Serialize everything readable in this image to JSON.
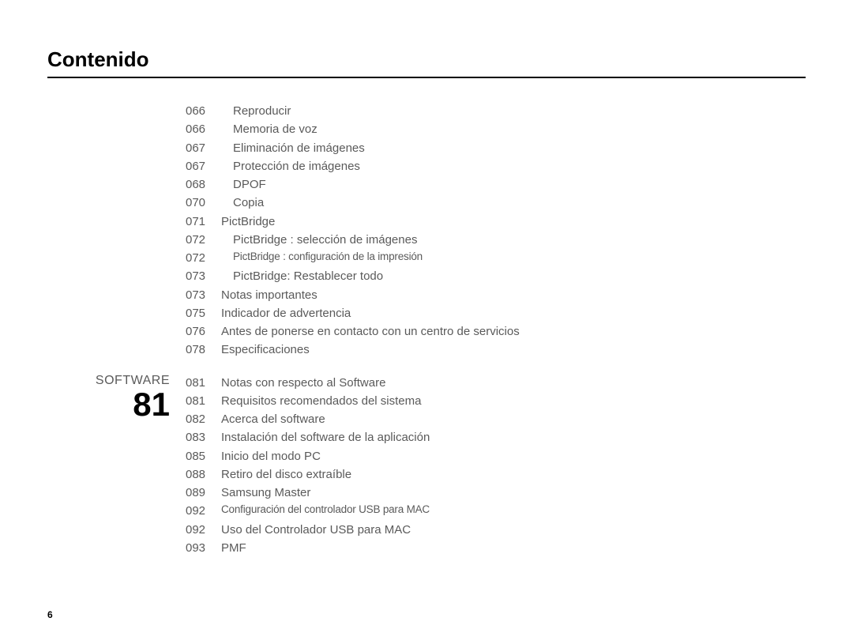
{
  "title": "Contenido",
  "page_number": "6",
  "colors": {
    "title": "#000000",
    "text": "#5a5a5a",
    "rule": "#000000",
    "section_number": "#000000",
    "background": "#ffffff"
  },
  "fonts": {
    "title_size_pt": 20,
    "body_size_pt": 11,
    "section_label_size_pt": 12,
    "section_number_size_pt": 32
  },
  "sections": [
    {
      "label": "",
      "number": "",
      "entries": [
        {
          "page": "066",
          "text": "Reproducir",
          "indent": 1,
          "narrow": false
        },
        {
          "page": "066",
          "text": "Memoria de voz",
          "indent": 1,
          "narrow": false
        },
        {
          "page": "067",
          "text": "Eliminación de imágenes",
          "indent": 1,
          "narrow": false
        },
        {
          "page": "067",
          "text": "Protección de imágenes",
          "indent": 1,
          "narrow": false
        },
        {
          "page": "068",
          "text": "DPOF",
          "indent": 1,
          "narrow": false
        },
        {
          "page": "070",
          "text": "Copia",
          "indent": 1,
          "narrow": false
        },
        {
          "page": "071",
          "text": "PictBridge",
          "indent": 0,
          "narrow": false
        },
        {
          "page": "072",
          "text": "PictBridge : selección de imágenes",
          "indent": 1,
          "narrow": false
        },
        {
          "page": "072",
          "text": "PictBridge : configuración de la impresión",
          "indent": 1,
          "narrow": true
        },
        {
          "page": "073",
          "text": "PictBridge: Restablecer todo",
          "indent": 1,
          "narrow": false
        },
        {
          "page": "073",
          "text": "Notas importantes",
          "indent": 0,
          "narrow": false
        },
        {
          "page": "075",
          "text": "Indicador de advertencia",
          "indent": 0,
          "narrow": false
        },
        {
          "page": "076",
          "text": "Antes de ponerse en contacto con un centro de servicios",
          "indent": 0,
          "narrow": false
        },
        {
          "page": "078",
          "text": "Especificaciones",
          "indent": 0,
          "narrow": false
        }
      ]
    },
    {
      "label": "SOFTWARE",
      "number": "81",
      "entries": [
        {
          "page": "081",
          "text": "Notas con respecto al Software",
          "indent": 0,
          "narrow": false
        },
        {
          "page": "081",
          "text": "Requisitos recomendados del sistema",
          "indent": 0,
          "narrow": false
        },
        {
          "page": "082",
          "text": "Acerca del software",
          "indent": 0,
          "narrow": false
        },
        {
          "page": "083",
          "text": "Instalación del software de la aplicación",
          "indent": 0,
          "narrow": false
        },
        {
          "page": "085",
          "text": "Inicio del modo PC",
          "indent": 0,
          "narrow": false
        },
        {
          "page": "088",
          "text": "Retiro del disco extraíble",
          "indent": 0,
          "narrow": false
        },
        {
          "page": "089",
          "text": "Samsung Master",
          "indent": 0,
          "narrow": false
        },
        {
          "page": "092",
          "text": "Configuración del controlador USB para MAC",
          "indent": 0,
          "narrow": true
        },
        {
          "page": "092",
          "text": "Uso del Controlador USB para MAC",
          "indent": 0,
          "narrow": false
        },
        {
          "page": "093",
          "text": "PMF",
          "indent": 0,
          "narrow": false
        }
      ]
    }
  ]
}
